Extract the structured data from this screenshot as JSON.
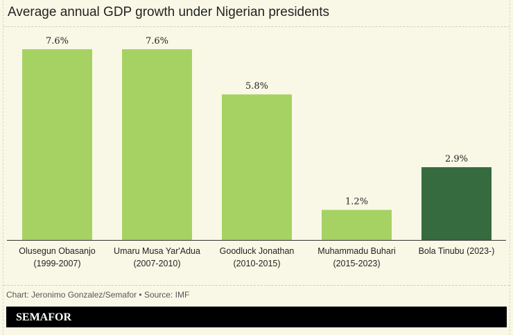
{
  "chart_data": {
    "type": "bar",
    "title": "Average annual GDP growth under Nigerian presidents",
    "categories": [
      [
        "Olusegun Obasanjo",
        "(1999-2007)"
      ],
      [
        "Umaru Musa Yar'Adua",
        "(2007-2010)"
      ],
      [
        "Goodluck Jonathan",
        "(2010-2015)"
      ],
      [
        "Muhammadu Buhari",
        "(2015-2023)"
      ],
      [
        "Bola Tinubu (2023-)"
      ]
    ],
    "values": [
      7.6,
      7.6,
      5.8,
      1.2,
      2.9
    ],
    "data_labels": [
      "7.6%",
      "7.6%",
      "5.8%",
      "1.2%",
      "2.9%"
    ],
    "colors": [
      "#a6d263",
      "#a6d263",
      "#a6d263",
      "#a6d263",
      "#366b3f"
    ],
    "ylim": [
      0,
      7.6
    ],
    "xlabel": "",
    "ylabel": ""
  },
  "credit": "Chart: Jeronimo Gonzalez/Semafor • Source: IMF",
  "brand": "SEMAFOR"
}
